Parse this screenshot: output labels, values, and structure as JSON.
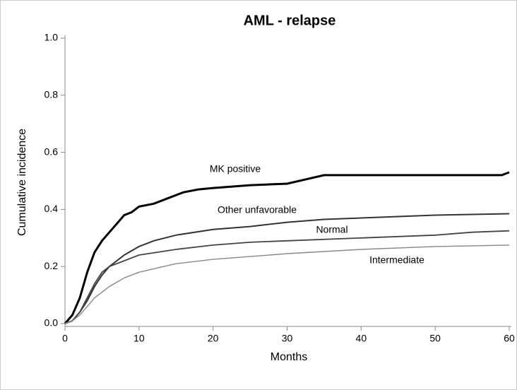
{
  "chart_data": {
    "type": "line",
    "title": "AML - relapse",
    "x_label": "Months",
    "y_label": "Cumulative incidence",
    "xlim": [
      0,
      60
    ],
    "xticks": [
      0,
      10,
      20,
      30,
      40,
      50,
      60
    ],
    "ylim": [
      0,
      1
    ],
    "yticks": [
      {
        "value": 0,
        "label": "0.0"
      },
      0.2,
      0.4,
      0.6,
      0.8,
      {
        "value": 1,
        "label": "1.0"
      }
    ],
    "grid": false,
    "series": [
      {
        "name": "MK positive",
        "color": "#000000",
        "x": [
          0,
          1,
          2,
          3,
          4,
          5,
          6,
          7,
          8,
          9,
          10,
          12,
          14,
          16,
          18,
          20,
          25,
          30,
          35,
          45,
          59,
          60
        ],
        "values": [
          0,
          0.03,
          0.09,
          0.18,
          0.25,
          0.29,
          0.32,
          0.35,
          0.38,
          0.39,
          0.41,
          0.42,
          0.44,
          0.46,
          0.47,
          0.475,
          0.485,
          0.49,
          0.52,
          0.52,
          0.52,
          0.53
        ]
      },
      {
        "name": "Other unfavorable",
        "color": "#333333",
        "x": [
          0,
          1,
          2,
          3,
          4,
          5,
          6,
          8,
          10,
          12,
          15,
          20,
          25,
          30,
          35,
          40,
          50,
          60
        ],
        "values": [
          0,
          0.01,
          0.04,
          0.08,
          0.13,
          0.17,
          0.2,
          0.24,
          0.27,
          0.29,
          0.31,
          0.33,
          0.34,
          0.355,
          0.365,
          0.37,
          0.38,
          0.385
        ]
      },
      {
        "name": "Normal",
        "color": "#444444",
        "x": [
          0,
          1,
          2,
          3,
          4,
          5,
          6,
          8,
          10,
          15,
          20,
          25,
          30,
          40,
          50,
          55,
          60
        ],
        "values": [
          0,
          0.01,
          0.04,
          0.09,
          0.14,
          0.18,
          0.2,
          0.22,
          0.24,
          0.26,
          0.275,
          0.285,
          0.29,
          0.3,
          0.31,
          0.32,
          0.325
        ]
      },
      {
        "name": "Intermediate",
        "color": "#888888",
        "x": [
          0,
          1,
          2,
          3,
          4,
          5,
          6,
          8,
          10,
          15,
          20,
          25,
          30,
          40,
          50,
          60
        ],
        "values": [
          0,
          0.01,
          0.03,
          0.06,
          0.09,
          0.11,
          0.13,
          0.16,
          0.18,
          0.21,
          0.225,
          0.235,
          0.245,
          0.26,
          0.27,
          0.275
        ]
      }
    ]
  }
}
